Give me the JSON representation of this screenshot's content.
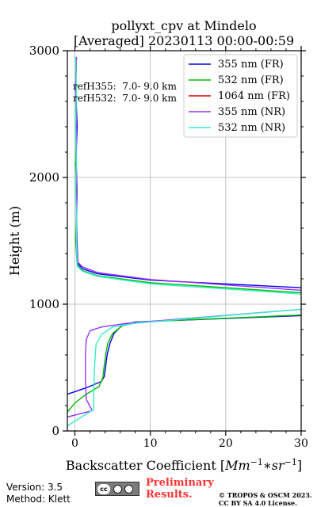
{
  "chart_data": {
    "type": "line",
    "title": "pollyxt_cpv at Mindelo",
    "subtitle": "[Averaged] 20230113 00:00-00:59",
    "xlabel": "Backscatter Coefficient [$Mm^{-1}*sr^{-1}$]",
    "xlabel_parts": {
      "prefix": "Backscatter Coefficient [",
      "base1": "Mm",
      "sup1": "−1",
      "mid": "∗",
      "base2": "sr",
      "sup2": "−1",
      "suffix": "]"
    },
    "ylabel": "Height (m)",
    "xlim": [
      -1,
      30
    ],
    "ylim": [
      0,
      3000
    ],
    "xticks": [
      0,
      10,
      20,
      30
    ],
    "yticks": [
      0,
      1000,
      2000,
      3000
    ],
    "grid": true,
    "legend_position": "top-right",
    "annotations": [
      "refH355:  7.0- 9.0 km",
      "refH532:  7.0- 9.0 km"
    ],
    "series": [
      {
        "name": "355 nm (FR)",
        "color": "#0000dd",
        "points": [
          [
            -1,
            290
          ],
          [
            1.5,
            340
          ],
          [
            3.5,
            390
          ],
          [
            3.9,
            430
          ],
          [
            4.1,
            520
          ],
          [
            4.3,
            610
          ],
          [
            4.7,
            700
          ],
          [
            5.2,
            770
          ],
          [
            6.2,
            830
          ],
          [
            8,
            860
          ],
          [
            30,
            910
          ]
        ]
      },
      {
        "name": "532 nm (FR)",
        "color": "#00bb00",
        "points": [
          [
            -1,
            150
          ],
          [
            0,
            220
          ],
          [
            1.5,
            290
          ],
          [
            3.2,
            350
          ],
          [
            3.7,
            420
          ],
          [
            3.9,
            520
          ],
          [
            4.1,
            610
          ],
          [
            4.4,
            700
          ],
          [
            5,
            770
          ],
          [
            6.3,
            830
          ],
          [
            8.5,
            860
          ],
          [
            30,
            915
          ]
        ]
      },
      {
        "name": "1064 nm (FR)",
        "color": "#dd0000",
        "points": []
      },
      {
        "name": "355 nm (NR)",
        "color": "#9933ff",
        "points": [
          [
            -1,
            110
          ],
          [
            2.3,
            160
          ],
          [
            1.5,
            250
          ],
          [
            1.4,
            400
          ],
          [
            1.4,
            600
          ],
          [
            1.5,
            720
          ],
          [
            2,
            790
          ],
          [
            3.5,
            820
          ],
          [
            7,
            850
          ],
          [
            30,
            960
          ]
        ]
      },
      {
        "name": "532 nm (NR)",
        "color": "#33eecc",
        "points": [
          [
            -1,
            40
          ],
          [
            2.5,
            170
          ],
          [
            2.5,
            300
          ],
          [
            2.6,
            500
          ],
          [
            2.8,
            680
          ],
          [
            3.5,
            760
          ],
          [
            5,
            820
          ],
          [
            8,
            850
          ],
          [
            30,
            960
          ]
        ]
      }
    ],
    "upper_profiles": [
      {
        "color": "#0000dd",
        "points": [
          [
            30,
            1130
          ],
          [
            10,
            1190
          ],
          [
            3,
            1240
          ],
          [
            1,
            1280
          ],
          [
            0.4,
            1320
          ],
          [
            0.2,
            1500
          ],
          [
            0.2,
            1700
          ],
          [
            0.3,
            1900
          ],
          [
            0.1,
            2100
          ],
          [
            0.3,
            2400
          ],
          [
            0.1,
            2700
          ],
          [
            0.2,
            2950
          ]
        ]
      },
      {
        "color": "#00bb00",
        "points": [
          [
            30,
            1090
          ],
          [
            10,
            1170
          ],
          [
            3,
            1225
          ],
          [
            1,
            1265
          ],
          [
            0.3,
            1310
          ],
          [
            0.1,
            1500
          ],
          [
            0.2,
            1700
          ],
          [
            0.2,
            1900
          ],
          [
            0.1,
            2100
          ],
          [
            0.2,
            2400
          ],
          [
            0.1,
            2700
          ],
          [
            0.2,
            2950
          ]
        ]
      },
      {
        "color": "#9933ff",
        "points": [
          [
            30,
            1110
          ],
          [
            10,
            1195
          ],
          [
            3,
            1250
          ],
          [
            1,
            1295
          ],
          [
            0.4,
            1330
          ],
          [
            0.3,
            1500
          ],
          [
            0.2,
            1700
          ],
          [
            0.3,
            1900
          ],
          [
            0.2,
            2100
          ],
          [
            0.2,
            2400
          ],
          [
            0.1,
            2700
          ],
          [
            0.2,
            2950
          ]
        ]
      },
      {
        "color": "#33eecc",
        "points": [
          [
            30,
            1080
          ],
          [
            10,
            1160
          ],
          [
            3,
            1220
          ],
          [
            1,
            1260
          ],
          [
            0.3,
            1300
          ],
          [
            0.2,
            1500
          ],
          [
            0.2,
            1700
          ],
          [
            0.1,
            1900
          ],
          [
            0.2,
            2100
          ],
          [
            0.1,
            2400
          ],
          [
            0.2,
            2700
          ],
          [
            0.1,
            2950
          ]
        ]
      }
    ]
  },
  "footer": {
    "version": "Version: 3.5",
    "method": "Method: Klett",
    "license_badge": "cc-by-sa-badge",
    "preliminary_line1": "Preliminary",
    "preliminary_line2": "Results.",
    "copyright_line1": "© TROPOS & OSCM 2023.",
    "copyright_line2": "CC BY SA 4.0 License."
  }
}
